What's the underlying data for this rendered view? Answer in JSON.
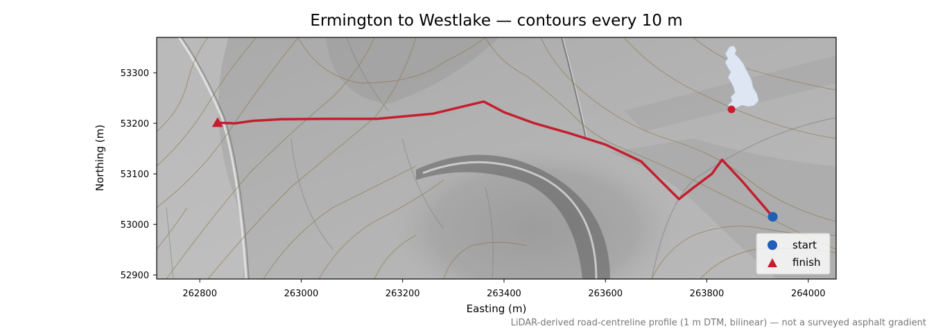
{
  "chart_data": {
    "type": "map",
    "title": "Ermington to Westlake — contours every 10 m",
    "xlabel": "Easting (m)",
    "ylabel": "Northing (m)",
    "xlim": [
      262715,
      264055
    ],
    "ylim": [
      52892,
      53370
    ],
    "x_ticks": [
      262800,
      263000,
      263200,
      263400,
      263600,
      263800,
      264000
    ],
    "y_ticks": [
      52900,
      53000,
      53100,
      53200,
      53300
    ],
    "x_tick_labels": [
      "262800",
      "263000",
      "263200",
      "263400",
      "263600",
      "263800",
      "264000"
    ],
    "y_tick_labels": [
      "52900",
      "53000",
      "53100",
      "53200",
      "53300"
    ],
    "route": {
      "color": "#c41e2e",
      "points": [
        [
          262835,
          53201
        ],
        [
          262870,
          53200
        ],
        [
          262905,
          53205
        ],
        [
          262960,
          53208
        ],
        [
          263050,
          53209
        ],
        [
          263150,
          53209
        ],
        [
          263260,
          53219
        ],
        [
          263360,
          53243
        ],
        [
          263400,
          53222
        ],
        [
          263460,
          53200
        ],
        [
          263530,
          53180
        ],
        [
          263600,
          53158
        ],
        [
          263670,
          53125
        ],
        [
          263745,
          53050
        ],
        [
          263770,
          53070
        ],
        [
          263810,
          53100
        ],
        [
          263830,
          53128
        ],
        [
          263870,
          53085
        ],
        [
          263930,
          53015
        ]
      ]
    },
    "start": {
      "label": "start",
      "x": 263930,
      "y": 53015,
      "color": "#1f5fb4",
      "marker": "circle"
    },
    "finish": {
      "label": "finish",
      "x": 262835,
      "y": 53201,
      "color": "#c41e2e",
      "marker": "triangle"
    },
    "legend": {
      "position": "lower-right",
      "entries": [
        "start",
        "finish"
      ]
    },
    "inset": {
      "description_icon": "uk-locator-map",
      "location_marker_color": "#c41e2e",
      "position": "top-right"
    },
    "basemap": "hillshade-with-contours",
    "grid": false
  },
  "caption": "LiDAR-derived road-centreline profile (1 m DTM, bilinear) — not a surveyed asphalt gradient"
}
